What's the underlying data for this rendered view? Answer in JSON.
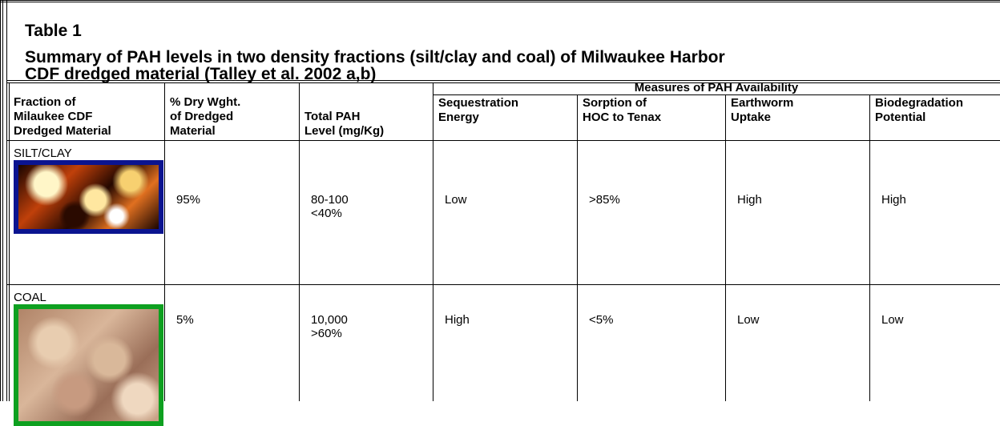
{
  "header": {
    "label": "Table 1",
    "title": [
      "Summary of PAH levels in two density fractions (silt/clay and coal) of Milwaukee Harbor",
      "CDF dredged material  (Talley et al. 2002 a,b)"
    ]
  },
  "table": {
    "group_header": "Measures of PAH Availability",
    "columns": [
      [
        "Fraction of",
        "Milaukee CDF",
        "Dredged Material"
      ],
      [
        "% Dry Wght.",
        "of Dredged",
        "Material"
      ],
      [
        "Total PAH",
        "Level (mg/Kg)"
      ],
      [
        "Sequestration",
        "Energy"
      ],
      [
        "Sorption of",
        "HOC to Tenax"
      ],
      [
        "Earthworm",
        "Uptake"
      ],
      [
        "Biodegradation",
        "Potential"
      ]
    ],
    "rows": [
      {
        "fraction": "SILT/CLAY",
        "cells": [
          [
            "95%"
          ],
          [
            "80-100",
            "<40%"
          ],
          [
            "Low"
          ],
          [
            ">85%"
          ],
          [
            "High"
          ],
          [
            "High"
          ]
        ]
      },
      {
        "fraction": "COAL",
        "cells": [
          [
            "5%"
          ],
          [
            "10,000",
            ">60%"
          ],
          [
            "High"
          ],
          [
            "<5%"
          ],
          [
            "Low"
          ],
          [
            "Low"
          ]
        ]
      }
    ]
  }
}
